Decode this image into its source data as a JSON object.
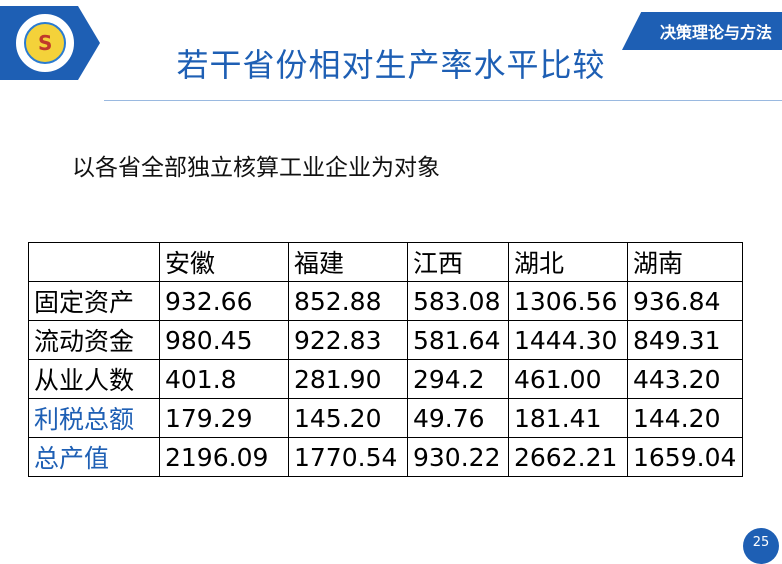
{
  "header": {
    "tag": "决策理论与方法",
    "title": "若干省份相对生产率水平比较"
  },
  "subtitle": "以各省全部独立核算工业企业为对象",
  "table": {
    "header": [
      "",
      "安徽",
      "福建",
      "江西",
      "湖北",
      "湖南"
    ],
    "rows": [
      {
        "label": "固定资产",
        "values": [
          "932.66",
          "852.88",
          "583.08",
          "1306.56",
          "936.84"
        ]
      },
      {
        "label": "流动资金",
        "values": [
          "980.45",
          "922.83",
          "581.64",
          "1444.30",
          "849.31"
        ]
      },
      {
        "label": "从业人数",
        "values": [
          "401.8",
          "281.90",
          "294.2",
          "461.00",
          "443.20"
        ]
      },
      {
        "label": "利税总额",
        "values": [
          "179.29",
          "145.20",
          "49.76",
          "181.41",
          "144.20"
        ]
      },
      {
        "label": "总产值",
        "values": [
          "2196.09",
          "1770.54",
          "930.22",
          "2662.21",
          "1659.04"
        ]
      }
    ]
  },
  "page_number": "25",
  "colors": {
    "accent": "#1e5fb4"
  },
  "icons": {
    "logo": "university-seal-icon"
  }
}
